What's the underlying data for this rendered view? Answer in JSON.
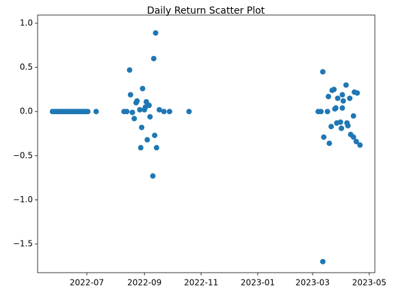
{
  "chart_data": {
    "type": "scatter",
    "title": "Daily Return Scatter Plot",
    "color": "#1f77b4",
    "x": [
      19137,
      19139,
      19141,
      19143,
      19145,
      19147,
      19149,
      19151,
      19153,
      19155,
      19157,
      19159,
      19161,
      19163,
      19165,
      19167,
      19169,
      19171,
      19173,
      19175,
      19184,
      19214,
      19217,
      19220,
      19221,
      19223,
      19225,
      19227,
      19228,
      19231,
      19232,
      19233,
      19234,
      19236,
      19237,
      19238,
      19239,
      19241,
      19242,
      19245,
      19246,
      19247,
      19248,
      19249,
      19252,
      19257,
      19263,
      19284,
      19423,
      19426,
      19428,
      19429,
      19433,
      19434,
      19435,
      19437,
      19438,
      19440,
      19441,
      19442,
      19444,
      19443,
      19447,
      19448,
      19449,
      19449,
      19450,
      19453,
      19454,
      19455,
      19457,
      19458,
      19461,
      19461,
      19462,
      19464,
      19465,
      19468,
      19428
    ],
    "values": [
      0,
      0,
      0,
      0,
      0,
      0,
      0,
      0,
      0,
      0,
      0,
      0,
      0,
      0,
      0,
      0,
      0,
      0,
      0,
      0,
      0,
      0,
      0,
      0.47,
      0.19,
      -0.01,
      -0.08,
      0.1,
      0.12,
      0.02,
      -0.41,
      -0.18,
      0.26,
      0.02,
      0.05,
      0.11,
      -0.32,
      0.07,
      -0.06,
      -0.73,
      0.6,
      -0.27,
      0.89,
      -0.41,
      0.02,
      0,
      0,
      0,
      0,
      0,
      0.45,
      -0.29,
      0,
      0.17,
      -0.36,
      -0.17,
      0.24,
      0.25,
      0.03,
      0.04,
      0.15,
      -0.13,
      -0.12,
      -0.19,
      0.19,
      0.04,
      0.12,
      0.3,
      -0.13,
      -0.16,
      0.15,
      -0.26,
      -0.05,
      -0.29,
      0.22,
      -0.34,
      0.21,
      -0.38,
      -1.7
    ],
    "xlim": [
      19121,
      19484
    ],
    "ylim": [
      -1.825,
      1.093
    ],
    "xticks": [
      {
        "value": 19174,
        "label": "2022-07"
      },
      {
        "value": 19236,
        "label": "2022-09"
      },
      {
        "value": 19297,
        "label": "2022-11"
      },
      {
        "value": 19358,
        "label": "2023-01"
      },
      {
        "value": 19417,
        "label": "2023-03"
      },
      {
        "value": 19478,
        "label": "2023-05"
      }
    ],
    "yticks": [
      {
        "value": 1.0,
        "label": "1.0"
      },
      {
        "value": 0.5,
        "label": "0.5"
      },
      {
        "value": 0,
        "label": "0.0"
      },
      {
        "value": -0.5,
        "label": "−0.5"
      },
      {
        "value": -1.0,
        "label": "−1.0"
      },
      {
        "value": -1.5,
        "label": "−1.5"
      }
    ]
  }
}
